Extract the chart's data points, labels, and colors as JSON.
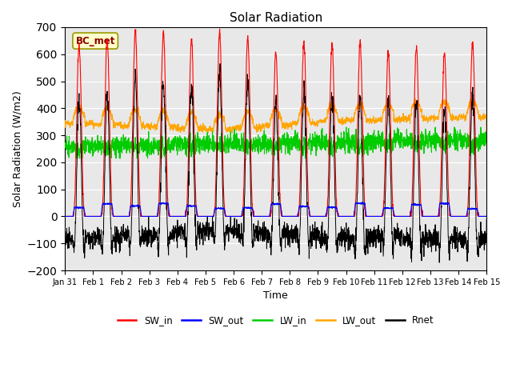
{
  "title": "Solar Radiation",
  "ylabel": "Solar Radiation (W/m2)",
  "xlabel": "Time",
  "ylim": [
    -200,
    700
  ],
  "yticks": [
    -200,
    -100,
    0,
    100,
    200,
    300,
    400,
    500,
    600,
    700
  ],
  "colors": {
    "SW_in": "#ff0000",
    "SW_out": "#0000ff",
    "LW_in": "#00cc00",
    "LW_out": "#ffa500",
    "Rnet": "#000000"
  },
  "label_box_text": "BC_met",
  "label_box_facecolor": "#ffffcc",
  "label_box_edgecolor": "#999900",
  "label_box_textcolor": "#8b0000",
  "axes_facecolor": "#e8e8e8",
  "n_days": 15,
  "pts_per_day": 144
}
